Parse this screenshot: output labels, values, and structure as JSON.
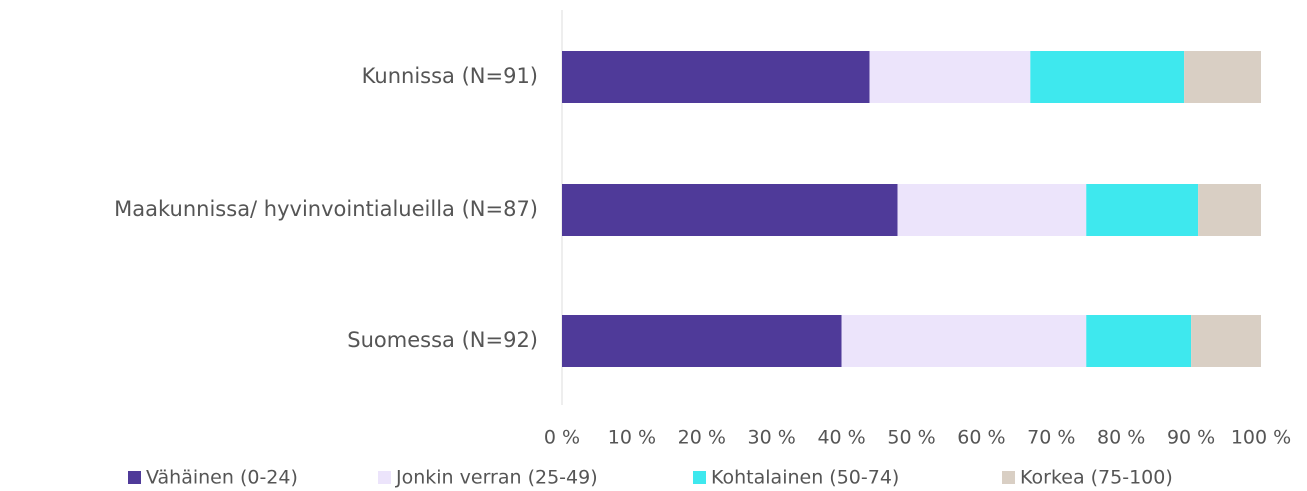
{
  "chart_data": {
    "type": "stacked-barh",
    "categories": [
      "Kunnissa (N=91)",
      "Maakunnissa/ hyvinvointialueilla (N=87)",
      "Suomessa (N=92)"
    ],
    "series": [
      {
        "name": "Vähäinen (0-24)",
        "color": "#4f3a99",
        "values": [
          44,
          48,
          40
        ]
      },
      {
        "name": "Jonkin verran (25-49)",
        "color": "#ece4fb",
        "values": [
          23,
          27,
          35
        ]
      },
      {
        "name": "Kohtalainen (50-74)",
        "color": "#3ee8ee",
        "values": [
          22,
          16,
          15
        ]
      },
      {
        "name": "Korkea (75-100)",
        "color": "#d9cfc4",
        "values": [
          11,
          9,
          10
        ]
      }
    ],
    "xlim": [
      0,
      100
    ],
    "xticks": [
      {
        "value": 0,
        "label": "0 %"
      },
      {
        "value": 10,
        "label": "10 %"
      },
      {
        "value": 20,
        "label": "20 %"
      },
      {
        "value": 30,
        "label": "30 %"
      },
      {
        "value": 40,
        "label": "40 %"
      },
      {
        "value": 50,
        "label": "50 %"
      },
      {
        "value": 60,
        "label": "60 %"
      },
      {
        "value": 70,
        "label": "70 %"
      },
      {
        "value": 80,
        "label": "80 %"
      },
      {
        "value": 90,
        "label": "90 %"
      },
      {
        "value": 100,
        "label": "100 %"
      }
    ],
    "legend": "bottom"
  }
}
